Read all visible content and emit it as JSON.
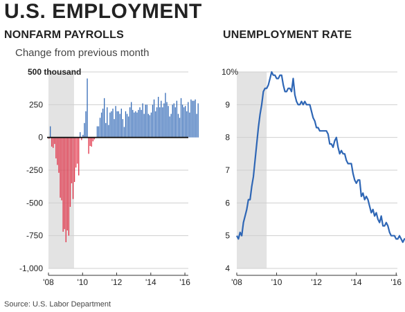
{
  "header": {
    "title": "U.S. EMPLOYMENT"
  },
  "source": "Source: U.S. Labor Department",
  "colors": {
    "positive": "#2e66b5",
    "negative": "#e0283e",
    "line": "#2e66b5",
    "recession": "#e3e3e3",
    "grid": "#cfcfcf"
  },
  "chart_data": [
    {
      "type": "bar",
      "title": "NONFARM PAYROLLS",
      "subtitle": "Change from previous month",
      "unit_label": "500 thousand",
      "ylim": [
        -1000,
        500
      ],
      "yticks": [
        {
          "v": 500,
          "label": "500"
        },
        {
          "v": 250,
          "label": "250"
        },
        {
          "v": 0,
          "label": "0"
        },
        {
          "v": -250,
          "label": "-250"
        },
        {
          "v": -500,
          "label": "-500"
        },
        {
          "v": -750,
          "label": "-750"
        },
        {
          "v": -1000,
          "label": "-1,000"
        }
      ],
      "xticks": [
        {
          "x": 2008.0,
          "label": "'08"
        },
        {
          "x": 2010.0,
          "label": "'10"
        },
        {
          "x": 2012.0,
          "label": "'12"
        },
        {
          "x": 2014.0,
          "label": "'14"
        },
        {
          "x": 2016.0,
          "label": "'16"
        }
      ],
      "xlim": [
        2008.0,
        2016.2
      ],
      "recession": [
        2008.0,
        2009.5
      ],
      "start": "2008-01",
      "values": [
        -10,
        85,
        -70,
        -80,
        -50,
        -160,
        -210,
        -270,
        -460,
        -480,
        -720,
        -700,
        -800,
        -710,
        -750,
        -530,
        -350,
        -470,
        -340,
        -230,
        -200,
        -290,
        40,
        -20,
        20,
        110,
        200,
        450,
        -125,
        -65,
        -70,
        -30,
        -15,
        0,
        85,
        85,
        150,
        190,
        220,
        300,
        110,
        230,
        95,
        190,
        200,
        220,
        140,
        240,
        200,
        200,
        180,
        220,
        140,
        80,
        200,
        180,
        160,
        230,
        270,
        210,
        190,
        200,
        190,
        210,
        230,
        210,
        260,
        180,
        250,
        250,
        180,
        170,
        190,
        250,
        290,
        200,
        230,
        310,
        230,
        280,
        230,
        260,
        340,
        270,
        240,
        160,
        180,
        250,
        260,
        230,
        280,
        180,
        150,
        300,
        250,
        230,
        240,
        200,
        270,
        190,
        290,
        280,
        280,
        290,
        180,
        260
      ]
    },
    {
      "type": "line",
      "title": "UNEMPLOYMENT RATE",
      "ylim": [
        4,
        10
      ],
      "yticks": [
        {
          "v": 10,
          "label": "10%"
        },
        {
          "v": 9,
          "label": "9"
        },
        {
          "v": 8,
          "label": "8"
        },
        {
          "v": 7,
          "label": "7"
        },
        {
          "v": 6,
          "label": "6"
        },
        {
          "v": 5,
          "label": "5"
        },
        {
          "v": 4,
          "label": "4"
        }
      ],
      "xticks": [
        {
          "x": 2008.0,
          "label": "'08"
        },
        {
          "x": 2010.0,
          "label": "'10"
        },
        {
          "x": 2012.0,
          "label": "'12"
        },
        {
          "x": 2014.0,
          "label": "'14"
        },
        {
          "x": 2016.0,
          "label": "'16"
        }
      ],
      "xlim": [
        2008.0,
        2016.2
      ],
      "recession": [
        2008.0,
        2009.5
      ],
      "start": "2008-01",
      "values": [
        5.0,
        4.9,
        5.1,
        5.0,
        5.4,
        5.6,
        5.8,
        6.1,
        6.1,
        6.5,
        6.8,
        7.3,
        7.8,
        8.3,
        8.7,
        9.0,
        9.4,
        9.5,
        9.5,
        9.6,
        9.8,
        10.0,
        9.9,
        9.9,
        9.8,
        9.8,
        9.9,
        9.9,
        9.6,
        9.4,
        9.4,
        9.5,
        9.5,
        9.4,
        9.8,
        9.3,
        9.1,
        9.0,
        9.0,
        9.1,
        9.0,
        9.1,
        9.0,
        9.0,
        9.0,
        8.8,
        8.6,
        8.5,
        8.3,
        8.3,
        8.2,
        8.2,
        8.2,
        8.2,
        8.2,
        8.1,
        7.8,
        7.8,
        7.7,
        7.9,
        8.0,
        7.7,
        7.5,
        7.6,
        7.5,
        7.5,
        7.3,
        7.2,
        7.2,
        7.2,
        6.9,
        6.7,
        6.6,
        6.7,
        6.7,
        6.2,
        6.3,
        6.1,
        6.2,
        6.1,
        5.9,
        5.7,
        5.8,
        5.6,
        5.7,
        5.5,
        5.4,
        5.6,
        5.3,
        5.3,
        5.4,
        5.3,
        5.1,
        5.0,
        5.0,
        5.0,
        4.9,
        4.9,
        5.0,
        4.9,
        4.8,
        4.9,
        4.9,
        4.9,
        5.0
      ]
    }
  ]
}
